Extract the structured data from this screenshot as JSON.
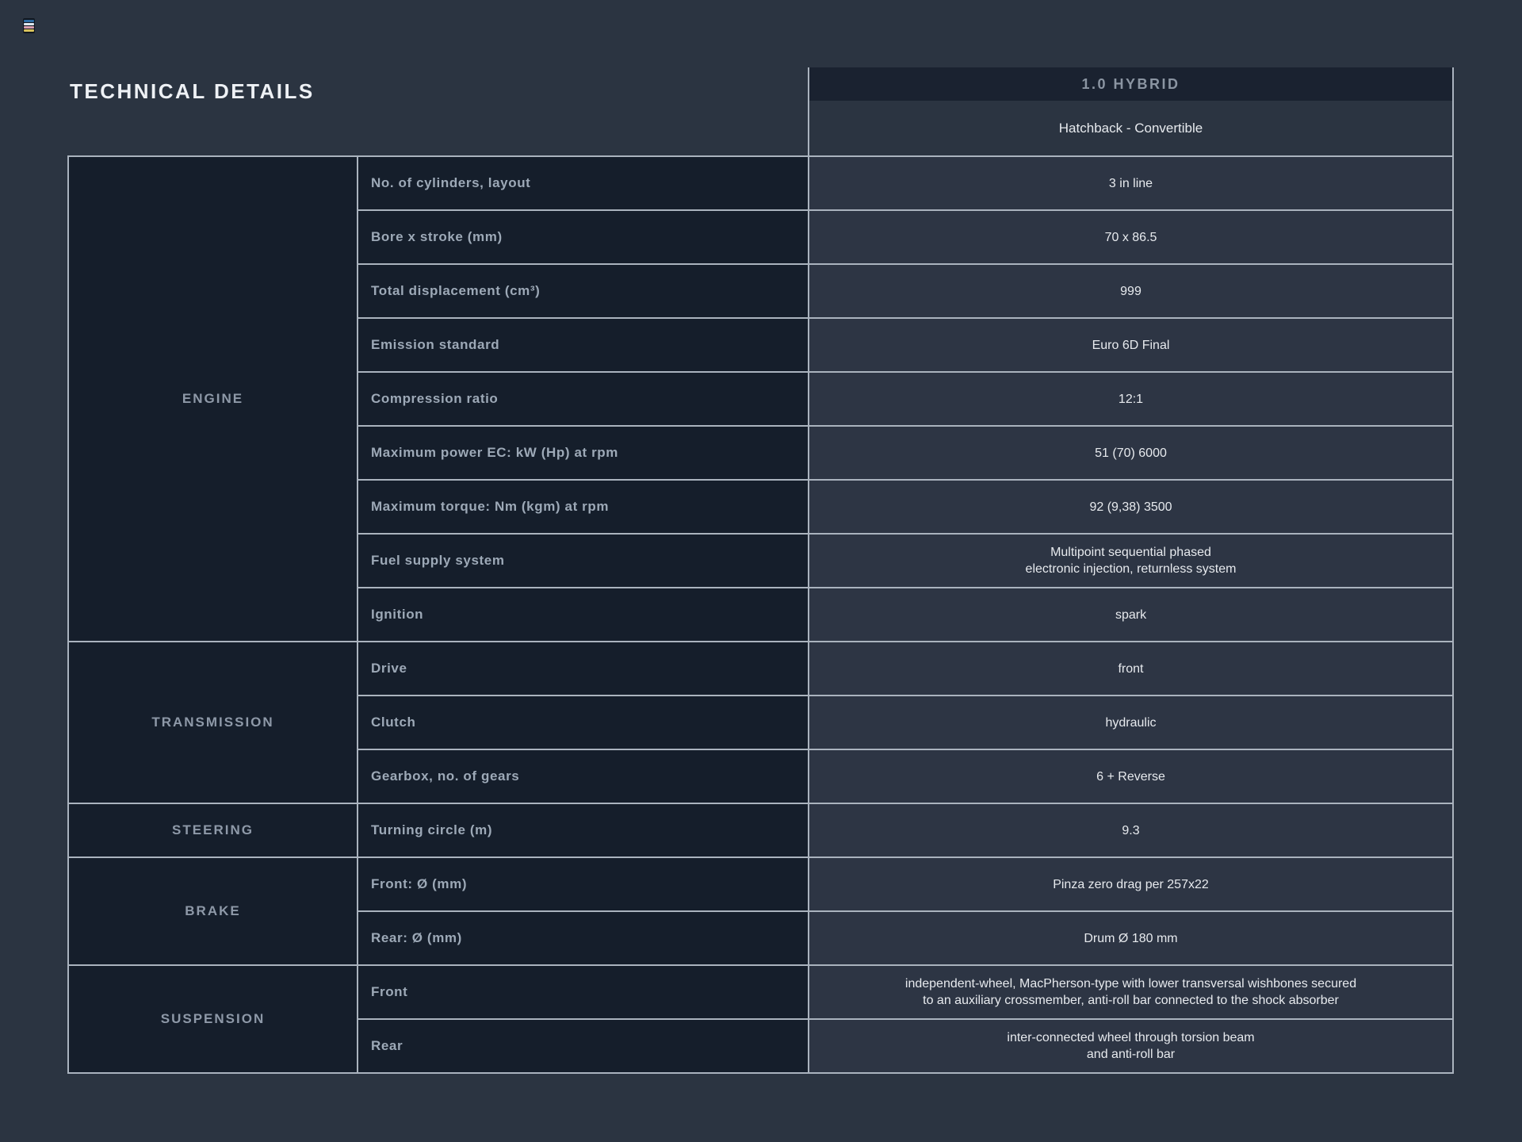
{
  "page": {
    "title": "TECHNICAL DETAILS"
  },
  "logo": {
    "stripes": [
      "#2f6ea6",
      "#dfe8ef",
      "#d79fae",
      "#d9c35c"
    ]
  },
  "colors": {
    "page_bg": "#2b3441",
    "cell_dark": "#151e2b",
    "header_bg": "#1a2230",
    "cell_value": "#2d3544",
    "line": "#aab3be",
    "title_text": "#eef1f5",
    "category_text": "#8e99a8",
    "label_text": "#9da9b7",
    "value_text": "#e7eaee",
    "header_text": "#8b95a2"
  },
  "table": {
    "header": {
      "trim": "1.0 HYBRID",
      "body_style": "Hatchback - Convertible"
    },
    "sections": [
      {
        "category": "ENGINE",
        "rows": [
          {
            "label": "No. of cylinders, layout",
            "value": "3 in line"
          },
          {
            "label": "Bore x stroke (mm)",
            "value": "70 x 86.5"
          },
          {
            "label": "Total displacement (cm³)",
            "value": "999"
          },
          {
            "label": "Emission standard",
            "value": "Euro 6D Final"
          },
          {
            "label": "Compression ratio",
            "value": "12:1"
          },
          {
            "label": "Maximum power EC: kW (Hp) at rpm",
            "value": "51 (70) 6000"
          },
          {
            "label": "Maximum torque: Nm (kgm) at rpm",
            "value": "92 (9,38) 3500"
          },
          {
            "label": "Fuel supply system",
            "value": "Multipoint sequential phased\nelectronic injection, returnless system"
          },
          {
            "label": "Ignition",
            "value": "spark"
          }
        ]
      },
      {
        "category": "TRANSMISSION",
        "rows": [
          {
            "label": "Drive",
            "value": "front"
          },
          {
            "label": "Clutch",
            "value": "hydraulic"
          },
          {
            "label": "Gearbox, no. of gears",
            "value": "6 + Reverse"
          }
        ]
      },
      {
        "category": "STEERING",
        "rows": [
          {
            "label": "Turning circle (m)",
            "value": "9.3"
          }
        ]
      },
      {
        "category": "BRAKE",
        "rows": [
          {
            "label": "Front: Ø (mm)",
            "value": "Pinza zero drag per 257x22"
          },
          {
            "label": "Rear: Ø (mm)",
            "value": "Drum Ø 180 mm"
          }
        ]
      },
      {
        "category": "SUSPENSION",
        "rows": [
          {
            "label": "Front",
            "value": "independent-wheel, MacPherson-type with lower transversal wishbones secured\nto an auxiliary crossmember, anti-roll bar connected to the shock absorber"
          },
          {
            "label": "Rear",
            "value": "inter-connected wheel through torsion beam\nand anti-roll bar"
          }
        ]
      }
    ]
  }
}
